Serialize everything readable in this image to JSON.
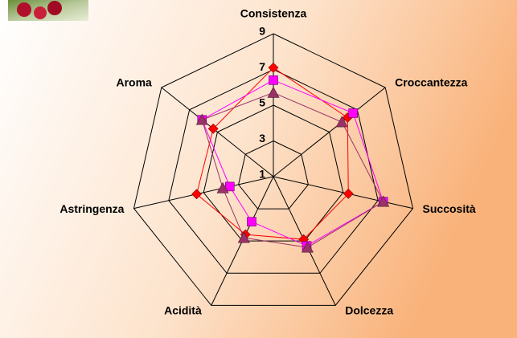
{
  "chart_data": {
    "type": "radar",
    "categories": [
      "Consistenza",
      "Croccantezza",
      "Succosità",
      "Dolcezza",
      "Acidità",
      "Astringenza",
      "Aroma"
    ],
    "ylim": [
      1,
      9
    ],
    "yticks": [
      1,
      3,
      5,
      7,
      9
    ],
    "grid": true,
    "series": [
      {
        "color": "#ff0000",
        "marker": "diamond",
        "values": [
          7.1,
          6.3,
          5.3,
          4.9,
          4.6,
          5.4,
          5.3
        ]
      },
      {
        "color": "#ff00ff",
        "marker": "square",
        "values": [
          6.4,
          6.7,
          7.3,
          5.3,
          3.8,
          3.5,
          6.1
        ]
      },
      {
        "color": "#993366",
        "marker": "triangle",
        "values": [
          5.7,
          5.9,
          7.3,
          5.4,
          4.8,
          3.9,
          6.1
        ]
      }
    ]
  }
}
